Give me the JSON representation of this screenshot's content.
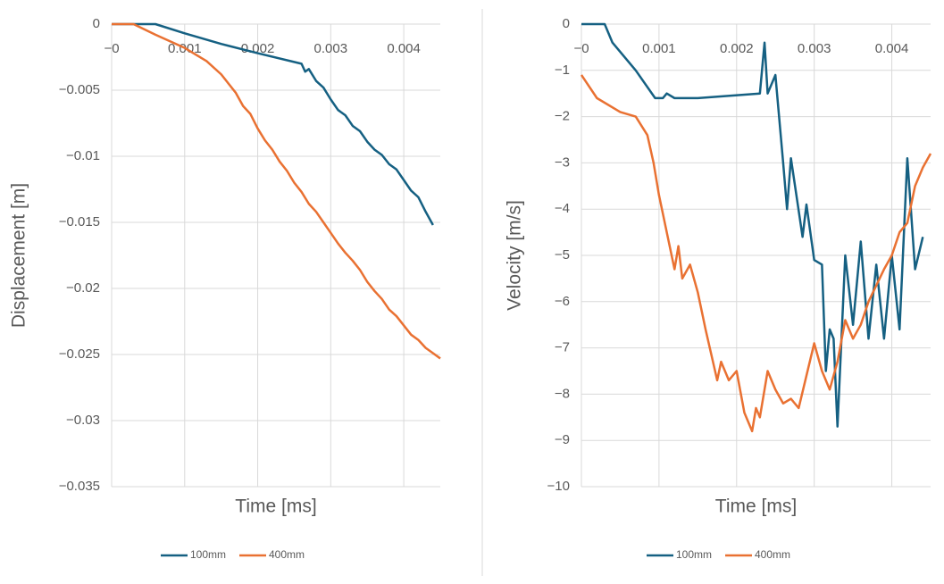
{
  "chart_data": [
    {
      "type": "line",
      "x_label": "Time [ms]",
      "y_label": "Displacement [m]",
      "xlim": [
        0,
        0.0045
      ],
      "ylim": [
        -0.035,
        0
      ],
      "xticks": [
        {
          "value": 0,
          "label": "−0"
        },
        0.001,
        0.002,
        0.003,
        0.004
      ],
      "yticks": [
        0,
        {
          "value": -0.005,
          "label": "−0.005"
        },
        {
          "value": -0.01,
          "label": "−0.01"
        },
        {
          "value": -0.015,
          "label": "−0.015"
        },
        {
          "value": -0.02,
          "label": "−0.02"
        },
        {
          "value": -0.025,
          "label": "−0.025"
        },
        {
          "value": -0.03,
          "label": "−0.03"
        },
        {
          "value": -0.035,
          "label": "−0.035"
        }
      ],
      "grid": true,
      "legend": "bottom",
      "series": [
        {
          "name": "100mm",
          "color": "#156082",
          "x": [
            0,
            0.0003,
            0.0006,
            0.001,
            0.0015,
            0.002,
            0.0026,
            0.00265,
            0.0027,
            0.0028,
            0.0029,
            0.003,
            0.0031,
            0.0032,
            0.0033,
            0.0034,
            0.0035,
            0.0036,
            0.0037,
            0.0038,
            0.0039,
            0.004,
            0.0041,
            0.0042,
            0.0043,
            0.0044
          ],
          "values": [
            0,
            0,
            0,
            -0.0007,
            -0.0015,
            -0.0022,
            -0.003,
            -0.0036,
            -0.0034,
            -0.0043,
            -0.0048,
            -0.0057,
            -0.0065,
            -0.0069,
            -0.0077,
            -0.0081,
            -0.0089,
            -0.0095,
            -0.0099,
            -0.0106,
            -0.011,
            -0.0118,
            -0.0126,
            -0.0131,
            -0.0142,
            -0.0152
          ]
        },
        {
          "name": "400mm",
          "color": "#e97132",
          "x": [
            0,
            0.0003,
            0.0006,
            0.001,
            0.0013,
            0.0015,
            0.0016,
            0.0017,
            0.0018,
            0.0019,
            0.002,
            0.0021,
            0.0022,
            0.0023,
            0.0024,
            0.0025,
            0.0026,
            0.0027,
            0.0028,
            0.0029,
            0.003,
            0.0031,
            0.0032,
            0.0033,
            0.0034,
            0.0035,
            0.0036,
            0.0037,
            0.0038,
            0.0039,
            0.004,
            0.0041,
            0.0042,
            0.0043,
            0.0044,
            0.0045
          ],
          "values": [
            0,
            0,
            -0.0008,
            -0.0018,
            -0.0028,
            -0.0038,
            -0.0045,
            -0.0052,
            -0.0062,
            -0.0068,
            -0.0079,
            -0.0088,
            -0.0095,
            -0.0104,
            -0.0111,
            -0.012,
            -0.0127,
            -0.0136,
            -0.0142,
            -0.015,
            -0.0158,
            -0.0166,
            -0.0173,
            -0.0179,
            -0.0186,
            -0.0195,
            -0.0202,
            -0.0208,
            -0.0216,
            -0.0221,
            -0.0228,
            -0.0235,
            -0.0239,
            -0.0245,
            -0.0249,
            -0.0253
          ]
        }
      ]
    },
    {
      "type": "line",
      "x_label": "Time [ms]",
      "y_label": "Velocity [m/s]",
      "xlim": [
        0,
        0.0045
      ],
      "ylim": [
        -10,
        0
      ],
      "xticks": [
        {
          "value": 0,
          "label": "−0"
        },
        0.001,
        0.002,
        0.003,
        0.004
      ],
      "yticks": [
        0,
        {
          "value": -1,
          "label": "−1"
        },
        {
          "value": -2,
          "label": "−2"
        },
        {
          "value": -3,
          "label": "−3"
        },
        {
          "value": -4,
          "label": "−4"
        },
        {
          "value": -5,
          "label": "−5"
        },
        {
          "value": -6,
          "label": "−6"
        },
        {
          "value": -7,
          "label": "−7"
        },
        {
          "value": -8,
          "label": "−8"
        },
        {
          "value": -9,
          "label": "−9"
        },
        {
          "value": -10,
          "label": "−10"
        }
      ],
      "grid": true,
      "legend": "bottom",
      "series": [
        {
          "name": "100mm",
          "color": "#156082",
          "x": [
            0,
            0.0003,
            0.0004,
            0.0005,
            0.0007,
            0.00095,
            0.00105,
            0.0011,
            0.0012,
            0.0015,
            0.0023,
            0.00236,
            0.0024,
            0.0025,
            0.0026,
            0.00265,
            0.0027,
            0.00285,
            0.0029,
            0.003,
            0.0031,
            0.00315,
            0.0032,
            0.00325,
            0.0033,
            0.0034,
            0.0035,
            0.0036,
            0.0037,
            0.0038,
            0.0039,
            0.004,
            0.0041,
            0.0042,
            0.0043,
            0.0044
          ],
          "values": [
            0,
            0,
            -0.4,
            -0.6,
            -1.0,
            -1.6,
            -1.6,
            -1.5,
            -1.6,
            -1.6,
            -1.5,
            -0.4,
            -1.5,
            -1.1,
            -3.0,
            -4.0,
            -2.9,
            -4.6,
            -3.9,
            -5.1,
            -5.2,
            -7.5,
            -6.6,
            -6.8,
            -8.7,
            -5.0,
            -6.5,
            -4.7,
            -6.8,
            -5.2,
            -6.8,
            -5.0,
            -6.6,
            -2.9,
            -5.3,
            -4.6
          ]
        },
        {
          "name": "400mm",
          "color": "#e97132",
          "x": [
            0,
            0.0002,
            0.0005,
            0.0007,
            0.00085,
            0.00093,
            0.001,
            0.0011,
            0.0012,
            0.00125,
            0.0013,
            0.0014,
            0.0015,
            0.0016,
            0.00175,
            0.0018,
            0.0019,
            0.002,
            0.0021,
            0.0022,
            0.00225,
            0.0023,
            0.0024,
            0.0025,
            0.0026,
            0.0027,
            0.0028,
            0.0029,
            0.003,
            0.0031,
            0.0032,
            0.0033,
            0.0034,
            0.0035,
            0.0036,
            0.0037,
            0.0039,
            0.004,
            0.0041,
            0.0042,
            0.0043,
            0.0044,
            0.0045
          ],
          "values": [
            -1.1,
            -1.6,
            -1.9,
            -2.0,
            -2.4,
            -3.0,
            -3.7,
            -4.5,
            -5.3,
            -4.8,
            -5.5,
            -5.2,
            -5.8,
            -6.6,
            -7.7,
            -7.3,
            -7.7,
            -7.5,
            -8.4,
            -8.8,
            -8.3,
            -8.5,
            -7.5,
            -7.9,
            -8.2,
            -8.1,
            -8.3,
            -7.6,
            -6.9,
            -7.5,
            -7.9,
            -7.3,
            -6.4,
            -6.8,
            -6.5,
            -6.0,
            -5.3,
            -5.0,
            -4.5,
            -4.3,
            -3.5,
            -3.1,
            -2.8
          ]
        }
      ]
    }
  ]
}
